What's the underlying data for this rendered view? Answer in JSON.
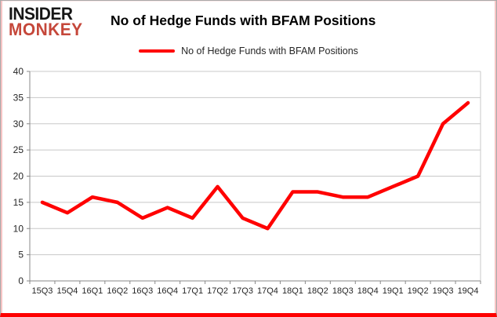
{
  "header": {
    "logo_line1": "INSIDER",
    "logo_line2": "MONKEY",
    "title": "No of Hedge Funds with BFAM Positions"
  },
  "legend": {
    "label": "No of Hedge Funds with BFAM Positions"
  },
  "chart_data": {
    "type": "line",
    "title": "No of Hedge Funds with BFAM Positions",
    "categories": [
      "15Q3",
      "15Q4",
      "16Q1",
      "16Q2",
      "16Q3",
      "16Q4",
      "17Q1",
      "17Q2",
      "17Q3",
      "17Q4",
      "18Q1",
      "18Q2",
      "18Q3",
      "18Q4",
      "19Q1",
      "19Q2",
      "19Q3",
      "19Q4"
    ],
    "series": [
      {
        "name": "No of Hedge Funds with BFAM Positions",
        "color": "#ff0000",
        "values": [
          15,
          13,
          16,
          15,
          12,
          14,
          12,
          18,
          12,
          10,
          17,
          17,
          16,
          16,
          18,
          20,
          30,
          34
        ]
      }
    ],
    "xlabel": "",
    "ylabel": "",
    "ylim": [
      0,
      40
    ],
    "yticks": [
      0,
      5,
      10,
      15,
      20,
      25,
      30,
      35,
      40
    ],
    "grid": true,
    "legend_position": "top"
  },
  "colors": {
    "line": "#ff0000",
    "logo_red": "#c5473a",
    "grid": "#c8c8c8",
    "axis": "#898989",
    "tick_label": "#262626",
    "frame_bottom": "#fe0000"
  }
}
